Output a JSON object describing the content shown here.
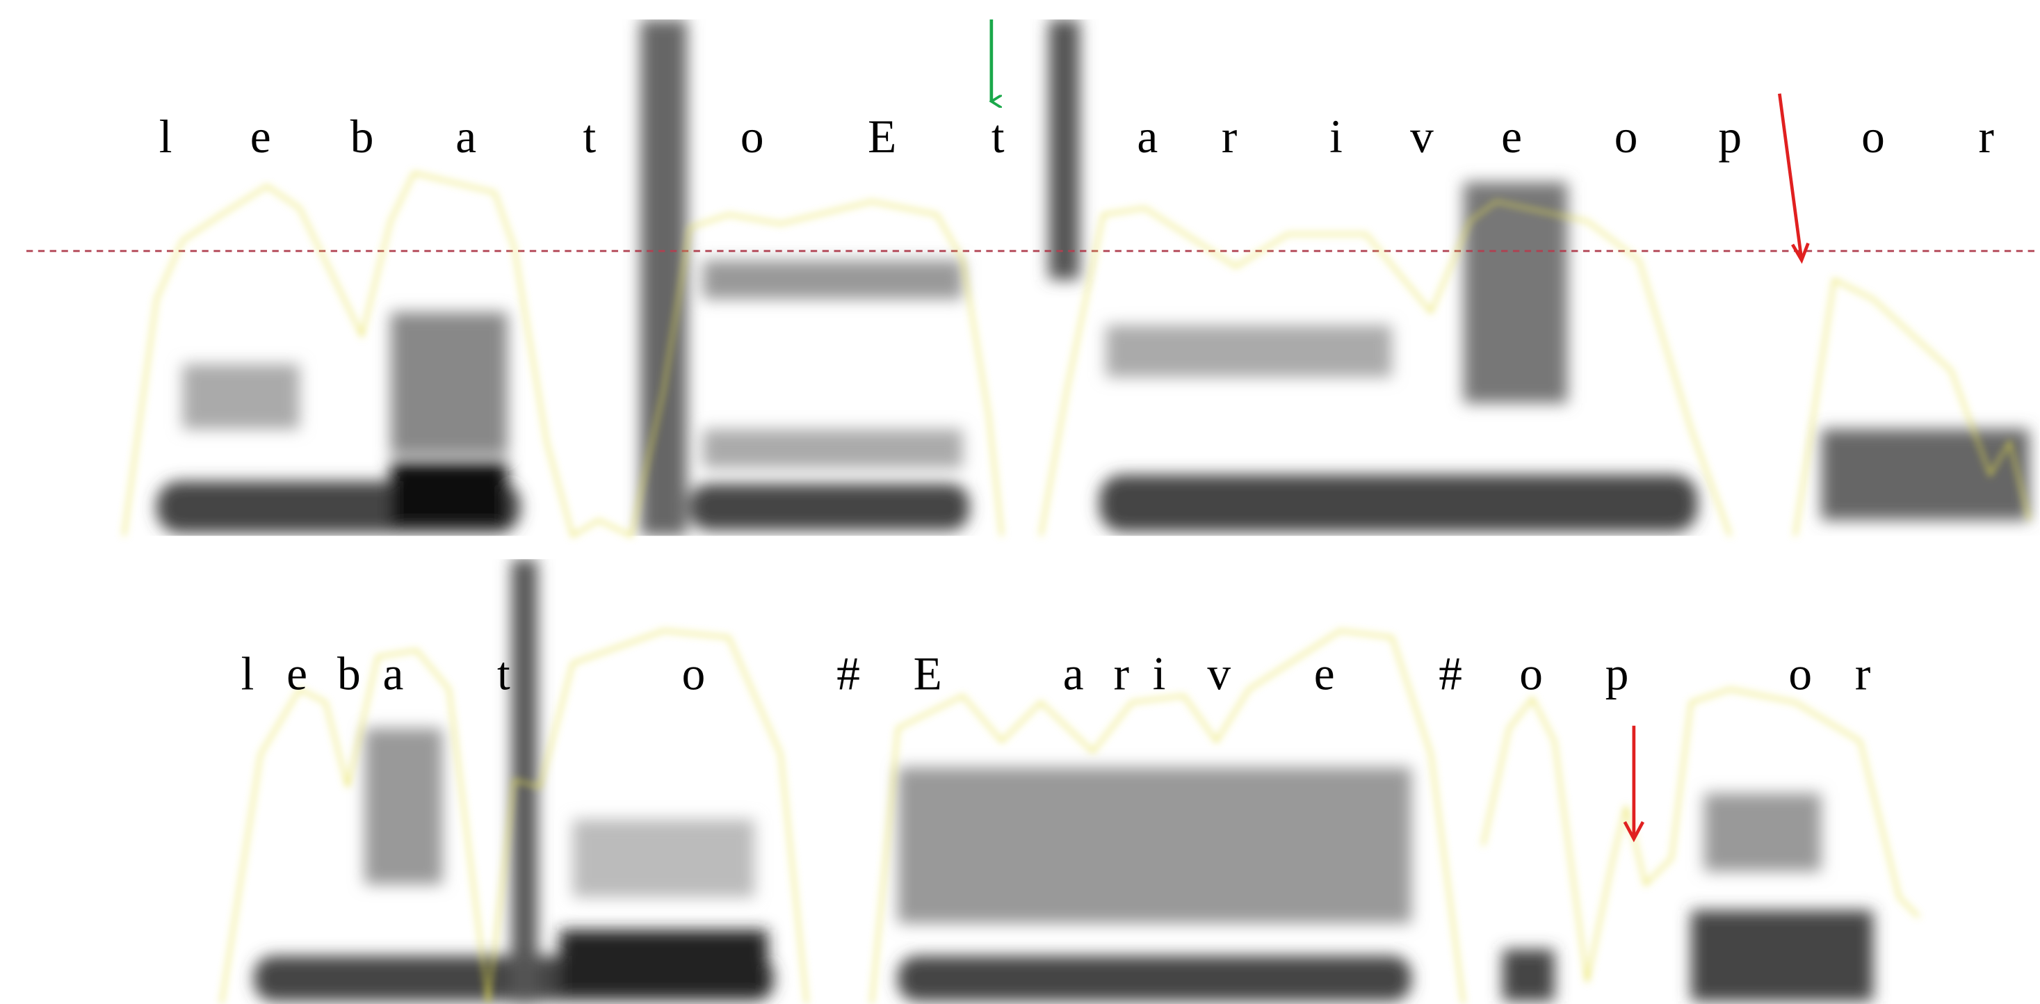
{
  "top_transcription": [
    "l",
    "e",
    "b",
    "a",
    "t",
    "o",
    "E",
    "t",
    "a",
    "r",
    "i",
    "v",
    "e",
    "o",
    "p",
    "o",
    "r"
  ],
  "bottom_transcription": [
    "l",
    "e",
    "b",
    "a",
    "t",
    "o",
    "#",
    "E",
    "a",
    "r",
    "i",
    "v",
    "e",
    "#",
    "o",
    "p",
    "o",
    "r"
  ]
}
